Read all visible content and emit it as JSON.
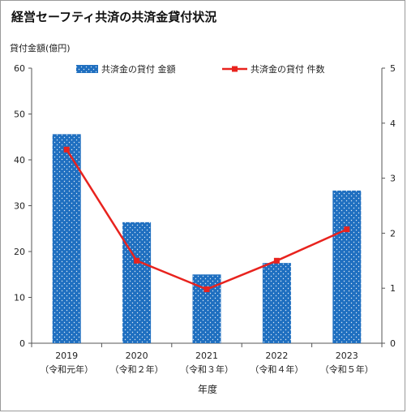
{
  "title": "経営セーフティ共済の共済金貸付状況",
  "chart_data": {
    "type": "bar+line",
    "categories": [
      "2019",
      "2020",
      "2021",
      "2022",
      "2023"
    ],
    "category_sublabels": [
      "（令和元年）",
      "（令和２年）",
      "（令和３年）",
      "（令和４年）",
      "（令和５年）"
    ],
    "xlabel": "年度",
    "ylabel_left": "貸付金額(億円)",
    "ylim_left": [
      0,
      60
    ],
    "yticks_left": [
      0,
      10,
      20,
      30,
      40,
      50,
      60
    ],
    "ylim_right": [
      0,
      5
    ],
    "yticks_right": [
      0,
      1,
      2,
      3,
      4,
      5
    ],
    "legend_position": "top",
    "series": [
      {
        "name": "共済金の貸付 金額",
        "type": "bar",
        "axis": "left",
        "color": "#1f6fc0",
        "values": [
          45.6,
          26.4,
          15.0,
          17.5,
          33.3
        ]
      },
      {
        "name": "共済金の貸付 件数",
        "type": "line",
        "axis": "right",
        "color": "#e8231e",
        "values": [
          3.52,
          1.5,
          0.98,
          1.5,
          2.07
        ]
      }
    ]
  }
}
